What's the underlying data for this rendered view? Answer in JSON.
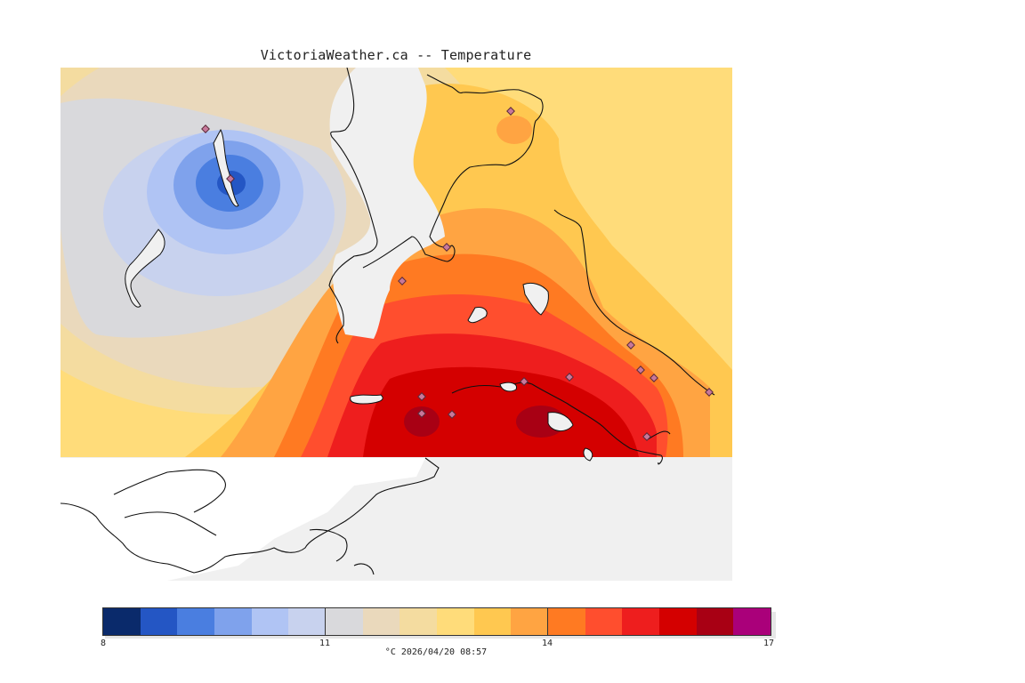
{
  "title": "VictoriaWeather.ca -- Temperature",
  "caption": "°C  2026/04/20 08:57",
  "colorbar": {
    "ticks": [
      "8",
      "11",
      "14",
      "17"
    ],
    "min": 8,
    "max": 17,
    "colors": [
      "#0a2a6b",
      "#2456c4",
      "#4a7ee0",
      "#7fa2ec",
      "#b0c4f4",
      "#c8d2ee",
      "#d9d9dc",
      "#ead9bc",
      "#f4dca0",
      "#ffdc7a",
      "#ffc850",
      "#ffa442",
      "#ff7a22",
      "#ff4e2e",
      "#ee1e1e",
      "#d40000",
      "#a80014",
      "#aa007a"
    ]
  },
  "map": {
    "background": "#f0f0f0",
    "land_color": "#ffffff",
    "station_color": "#c8789a"
  }
}
